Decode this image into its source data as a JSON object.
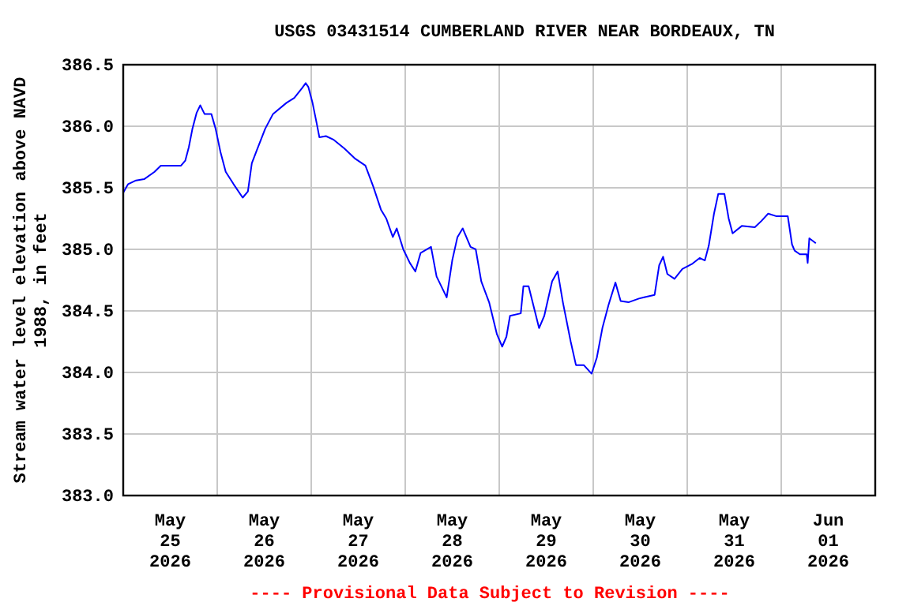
{
  "chart_data": {
    "type": "line",
    "title": "USGS 03431514 CUMBERLAND RIVER NEAR BORDEAUX, TN",
    "ylabel": "Stream water level elevation above NAVD\n1988, in feet",
    "annotations": [
      "---- Provisional Data Subject to Revision ----"
    ],
    "x": [
      "2026-05-25T00:00",
      "2026-05-25T01:15",
      "2026-05-25T03:15",
      "2026-05-25T05:20",
      "2026-05-25T08:00",
      "2026-05-25T09:35",
      "2026-05-25T14:45",
      "2026-05-25T15:50",
      "2026-05-25T16:45",
      "2026-05-25T17:40",
      "2026-05-25T18:45",
      "2026-05-25T19:40",
      "2026-05-25T20:45",
      "2026-05-25T22:30",
      "2026-05-25T23:35",
      "2026-05-26T00:50",
      "2026-05-26T02:10",
      "2026-05-26T04:10",
      "2026-05-26T06:30",
      "2026-05-26T07:50",
      "2026-05-26T08:50",
      "2026-05-26T10:10",
      "2026-05-26T12:15",
      "2026-05-26T14:15",
      "2026-05-26T17:40",
      "2026-05-26T19:40",
      "2026-05-26T21:40",
      "2026-05-26T22:35",
      "2026-05-26T23:15",
      "2026-05-27T00:20",
      "2026-05-27T01:25",
      "2026-05-27T02:05",
      "2026-05-27T03:45",
      "2026-05-27T05:45",
      "2026-05-27T08:25",
      "2026-05-27T11:05",
      "2026-05-27T13:50",
      "2026-05-27T15:50",
      "2026-05-27T17:50",
      "2026-05-27T19:10",
      "2026-05-27T19:50",
      "2026-05-27T20:50",
      "2026-05-27T21:50",
      "2026-05-27T23:30",
      "2026-05-28T01:10",
      "2026-05-28T02:35",
      "2026-05-28T03:55",
      "2026-05-28T06:35",
      "2026-05-28T08:00",
      "2026-05-28T10:35",
      "2026-05-28T12:00",
      "2026-05-28T13:20",
      "2026-05-28T14:40",
      "2026-05-28T16:40",
      "2026-05-28T18:00",
      "2026-05-28T19:25",
      "2026-05-28T21:25",
      "2026-05-28T23:25",
      "2026-05-29T00:45",
      "2026-05-29T01:50",
      "2026-05-29T02:45",
      "2026-05-29T05:30",
      "2026-05-29T06:10",
      "2026-05-29T07:30",
      "2026-05-29T10:10",
      "2026-05-29T11:30",
      "2026-05-29T13:30",
      "2026-05-29T14:55",
      "2026-05-29T16:15",
      "2026-05-29T18:15",
      "2026-05-29T19:35",
      "2026-05-29T21:35",
      "2026-05-29T23:35",
      "2026-05-30T00:55",
      "2026-05-30T02:20",
      "2026-05-30T03:55",
      "2026-05-30T05:40",
      "2026-05-30T07:00",
      "2026-05-30T09:00",
      "2026-05-30T11:40",
      "2026-05-30T13:00",
      "2026-05-30T15:40",
      "2026-05-30T16:50",
      "2026-05-30T17:50",
      "2026-05-30T18:55",
      "2026-05-30T20:45",
      "2026-05-30T22:45",
      "2026-05-31T01:10",
      "2026-05-31T03:10",
      "2026-05-31T04:30",
      "2026-05-31T05:30",
      "2026-05-31T06:50",
      "2026-05-31T07:55",
      "2026-05-31T09:30",
      "2026-05-31T10:35",
      "2026-05-31T11:35",
      "2026-05-31T13:55",
      "2026-05-31T17:15",
      "2026-05-31T18:55",
      "2026-05-31T20:40",
      "2026-05-31T22:40",
      "2026-06-01T01:40",
      "2026-06-01T02:45",
      "2026-06-01T03:25",
      "2026-06-01T04:45",
      "2026-06-01T06:30",
      "2026-06-01T06:45",
      "2026-06-01T07:10",
      "2026-06-01T08:50"
    ],
    "series": [
      {
        "color": "#0000ff",
        "values": [
          385.46,
          385.53,
          385.56,
          385.57,
          385.63,
          385.68,
          385.68,
          385.72,
          385.83,
          385.98,
          386.11,
          386.17,
          386.1,
          386.1,
          385.98,
          385.79,
          385.63,
          385.53,
          385.42,
          385.47,
          385.7,
          385.81,
          385.98,
          386.1,
          386.19,
          386.23,
          386.31,
          386.35,
          386.32,
          386.19,
          386.02,
          385.91,
          385.92,
          385.89,
          385.82,
          385.74,
          385.68,
          385.51,
          385.32,
          385.25,
          385.19,
          385.1,
          385.17,
          385.0,
          384.89,
          384.82,
          384.97,
          385.02,
          384.78,
          384.61,
          384.91,
          385.1,
          385.17,
          385.02,
          385.0,
          384.74,
          384.57,
          384.31,
          384.21,
          384.29,
          384.46,
          384.48,
          384.7,
          384.7,
          384.36,
          384.46,
          384.74,
          384.82,
          384.57,
          384.25,
          384.06,
          384.06,
          383.99,
          384.12,
          384.36,
          384.55,
          384.73,
          384.58,
          384.57,
          384.6,
          384.61,
          384.63,
          384.87,
          384.94,
          384.8,
          384.76,
          384.84,
          384.88,
          384.93,
          384.91,
          385.03,
          385.29,
          385.45,
          385.45,
          385.25,
          385.13,
          385.19,
          385.18,
          385.23,
          385.29,
          385.27,
          385.27,
          385.04,
          384.99,
          384.96,
          384.96,
          384.89,
          385.09,
          385.05
        ]
      }
    ],
    "xlim": [
      "2026-05-25T00:00",
      "2026-06-02T00:00"
    ],
    "xticks": [
      {
        "value": "2026-05-25T12:00",
        "label": "May\n25\n2026"
      },
      {
        "value": "2026-05-26T00:00",
        "label": null
      },
      {
        "value": "2026-05-26T12:00",
        "label": "May\n26\n2026"
      },
      {
        "value": "2026-05-27T00:00",
        "label": null
      },
      {
        "value": "2026-05-27T12:00",
        "label": "May\n27\n2026"
      },
      {
        "value": "2026-05-28T00:00",
        "label": null
      },
      {
        "value": "2026-05-28T12:00",
        "label": "May\n28\n2026"
      },
      {
        "value": "2026-05-29T00:00",
        "label": null
      },
      {
        "value": "2026-05-29T12:00",
        "label": "May\n29\n2026"
      },
      {
        "value": "2026-05-30T00:00",
        "label": null
      },
      {
        "value": "2026-05-30T12:00",
        "label": "May\n30\n2026"
      },
      {
        "value": "2026-05-31T00:00",
        "label": null
      },
      {
        "value": "2026-05-31T12:00",
        "label": "May\n31\n2026"
      },
      {
        "value": "2026-06-01T00:00",
        "label": null
      },
      {
        "value": "2026-06-01T12:00",
        "label": "Jun\n01\n2026"
      }
    ],
    "ylim": [
      383.0,
      386.5
    ],
    "yticks": [
      {
        "value": 383.0,
        "label": "383.0"
      },
      {
        "value": 383.5,
        "label": "383.5"
      },
      {
        "value": 384.0,
        "label": "384.0"
      },
      {
        "value": 384.5,
        "label": "384.5"
      },
      {
        "value": 385.0,
        "label": "385.0"
      },
      {
        "value": 385.5,
        "label": "385.5"
      },
      {
        "value": 386.0,
        "label": "386.0"
      },
      {
        "value": 386.5,
        "label": "386.5"
      }
    ],
    "grid": true,
    "marker": "none",
    "line_style": "solid"
  }
}
